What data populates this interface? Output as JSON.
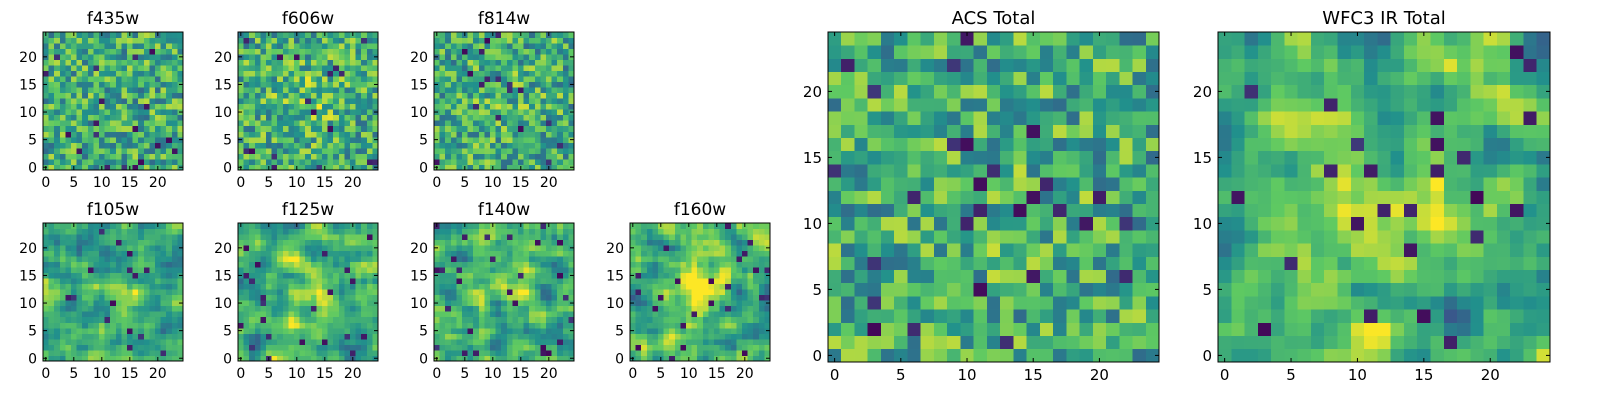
{
  "chart_data": {
    "type": "heatmap",
    "colormap": [
      "#440154",
      "#3b528b",
      "#21918c",
      "#5ec962",
      "#fde725"
    ],
    "grid_size": 25,
    "grid": false,
    "panels": [
      {
        "title": "f435w",
        "xticks": [
          0,
          5,
          10,
          15,
          20
        ],
        "yticks": [
          0,
          5,
          10,
          15,
          20
        ],
        "xlim": [
          -0.5,
          24.5
        ],
        "ylim": [
          -0.5,
          24.5
        ],
        "texture": "fine pixel noise"
      },
      {
        "title": "f606w",
        "xticks": [
          0,
          5,
          10,
          15,
          20
        ],
        "yticks": [
          0,
          5,
          10,
          15,
          20
        ],
        "xlim": [
          -0.5,
          24.5
        ],
        "ylim": [
          -0.5,
          24.5
        ],
        "texture": "fine pixel noise, slightly brighter center"
      },
      {
        "title": "f814w",
        "xticks": [
          0,
          5,
          10,
          15,
          20
        ],
        "yticks": [
          0,
          5,
          10,
          15,
          20
        ],
        "xlim": [
          -0.5,
          24.5
        ],
        "ylim": [
          -0.5,
          24.5
        ],
        "texture": "fine pixel noise"
      },
      {
        "title": "f105w",
        "xticks": [
          0,
          5,
          10,
          15,
          20
        ],
        "yticks": [
          0,
          5,
          10,
          15,
          20
        ],
        "xlim": [
          -0.5,
          24.5
        ],
        "ylim": [
          -0.5,
          24.5
        ],
        "texture": "smooth correlated noise"
      },
      {
        "title": "f125w",
        "xticks": [
          0,
          5,
          10,
          15,
          20
        ],
        "yticks": [
          0,
          5,
          10,
          15,
          20
        ],
        "xlim": [
          -0.5,
          24.5
        ],
        "ylim": [
          -0.5,
          24.5
        ],
        "texture": "smooth correlated noise, bright center"
      },
      {
        "title": "f140w",
        "xticks": [
          0,
          5,
          10,
          15,
          20
        ],
        "yticks": [
          0,
          5,
          10,
          15,
          20
        ],
        "xlim": [
          -0.5,
          24.5
        ],
        "ylim": [
          -0.5,
          24.5
        ],
        "texture": "smooth correlated noise"
      },
      {
        "title": "f160w",
        "xticks": [
          0,
          5,
          10,
          15,
          20
        ],
        "yticks": [
          0,
          5,
          10,
          15,
          20
        ],
        "xlim": [
          -0.5,
          24.5
        ],
        "ylim": [
          -0.5,
          24.5
        ],
        "texture": "smooth correlated noise, bright center"
      },
      {
        "title": "ACS Total",
        "xticks": [
          0,
          5,
          10,
          15,
          20
        ],
        "yticks": [
          0,
          5,
          10,
          15,
          20
        ],
        "xlim": [
          -0.5,
          24.5
        ],
        "ylim": [
          -0.5,
          24.5
        ],
        "texture": "blocky pixel noise"
      },
      {
        "title": "WFC3 IR Total",
        "xticks": [
          0,
          5,
          10,
          15,
          20
        ],
        "yticks": [
          0,
          5,
          10,
          15,
          20
        ],
        "xlim": [
          -0.5,
          24.5
        ],
        "ylim": [
          -0.5,
          24.5
        ],
        "texture": "blocky correlated noise, bright central source"
      }
    ]
  }
}
